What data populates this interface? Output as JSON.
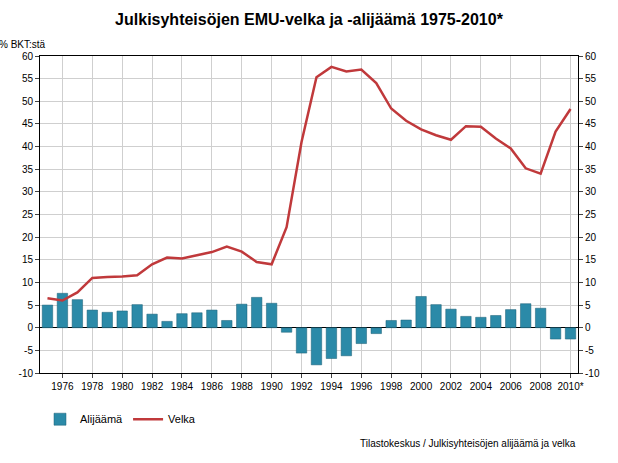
{
  "chart_data": {
    "type": "bar",
    "title": "Julkisyhteisöjen EMU-velka ja -alijäämä 1975-2010*",
    "ylabel": "% BKT:stä",
    "annotations": [
      "Tilastokeskus / Julkisyhteisöjen alijäämä ja velka"
    ],
    "categories": [
      null,
      "1976",
      null,
      "1978",
      null,
      "1980",
      null,
      "1982",
      null,
      "1984",
      null,
      "1986",
      null,
      "1988",
      null,
      "1990",
      null,
      "1992",
      null,
      "1994",
      null,
      "1996",
      null,
      "1998",
      null,
      "2000",
      null,
      "2002",
      null,
      "2004",
      null,
      "2006",
      null,
      "2008",
      null,
      "2010*"
    ],
    "series": [
      {
        "name": "Alijäämä",
        "type": "bar",
        "color": "#2b8aa8",
        "values": [
          5.0,
          7.6,
          6.2,
          3.9,
          3.4,
          3.7,
          5.1,
          3.0,
          1.4,
          3.1,
          3.3,
          3.9,
          1.6,
          5.2,
          6.7,
          5.4,
          -1.0,
          -5.6,
          -8.2,
          -6.8,
          -6.2,
          -3.5,
          -1.3,
          1.6,
          1.7,
          6.9,
          5.1,
          4.1,
          2.5,
          2.3,
          2.7,
          4.0,
          5.3,
          4.3,
          -2.5,
          -2.5
        ]
      },
      {
        "name": "Velka",
        "type": "line",
        "color": "#c0393b",
        "axis": "y2",
        "values": [
          6.5,
          6.0,
          7.8,
          11.0,
          11.2,
          11.3,
          11.6,
          14.0,
          15.5,
          15.3,
          16.0,
          16.7,
          17.9,
          16.8,
          14.5,
          14.0,
          22.2,
          41.0,
          55.3,
          57.6,
          56.6,
          57.0,
          54.0,
          48.4,
          45.7,
          43.8,
          42.5,
          41.5,
          44.5,
          44.4,
          41.8,
          39.6,
          35.2,
          34.0,
          43.3,
          48.3
        ]
      }
    ],
    "ylim": [
      -10,
      60
    ],
    "yticks": [
      -10,
      -5,
      0,
      5,
      10,
      15,
      20,
      25,
      30,
      35,
      40,
      45,
      50,
      55,
      60
    ],
    "y2lim": [
      -10,
      60
    ],
    "y2ticks": [
      -10,
      -5,
      0,
      5,
      10,
      15,
      20,
      25,
      30,
      35,
      40,
      45,
      50,
      55,
      60
    ],
    "grid": true,
    "legend": "bottom left"
  }
}
